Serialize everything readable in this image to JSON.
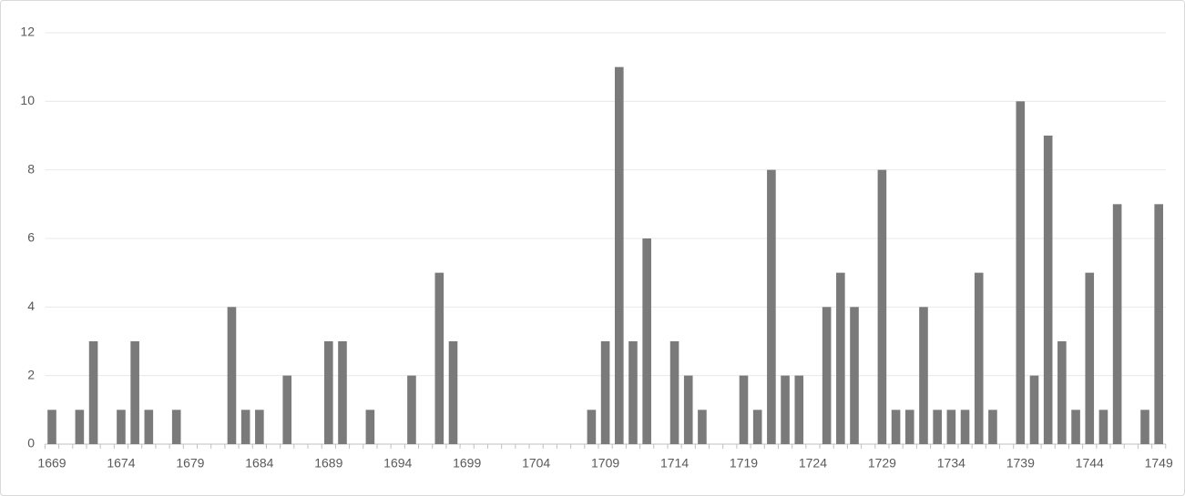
{
  "chart_data": {
    "type": "bar",
    "categories": [
      "1669",
      null,
      null,
      null,
      null,
      "1674",
      null,
      null,
      null,
      null,
      "1679",
      null,
      null,
      null,
      null,
      "1684",
      null,
      null,
      null,
      null,
      "1689",
      null,
      null,
      null,
      null,
      "1694",
      null,
      null,
      null,
      null,
      "1699",
      null,
      null,
      null,
      null,
      "1704",
      null,
      null,
      null,
      null,
      "1709",
      null,
      null,
      null,
      null,
      "1714",
      null,
      null,
      null,
      null,
      "1719",
      null,
      null,
      null,
      null,
      "1724",
      null,
      null,
      null,
      null,
      "1729",
      null,
      null,
      null,
      null,
      "1734",
      null,
      null,
      null,
      null,
      "1739",
      null,
      null,
      null,
      null,
      "1744",
      null,
      null,
      null,
      null,
      "1749"
    ],
    "values": [
      1,
      0,
      1,
      3,
      0,
      1,
      3,
      1,
      0,
      1,
      0,
      0,
      0,
      4,
      1,
      1,
      0,
      2,
      0,
      0,
      3,
      3,
      0,
      1,
      0,
      0,
      2,
      0,
      5,
      3,
      0,
      0,
      0,
      0,
      0,
      0,
      0,
      0,
      0,
      1,
      3,
      11,
      3,
      6,
      0,
      3,
      2,
      1,
      0,
      0,
      2,
      1,
      8,
      2,
      2,
      0,
      4,
      5,
      4,
      0,
      8,
      1,
      1,
      4,
      1,
      1,
      1,
      5,
      1,
      0,
      10,
      2,
      9,
      3,
      1,
      5,
      1,
      7,
      0,
      1,
      7
    ],
    "color": "#7a7a7a",
    "ylim": [
      0,
      12
    ],
    "yticks": [
      0,
      2,
      4,
      6,
      8,
      10,
      12
    ],
    "grid": true
  }
}
